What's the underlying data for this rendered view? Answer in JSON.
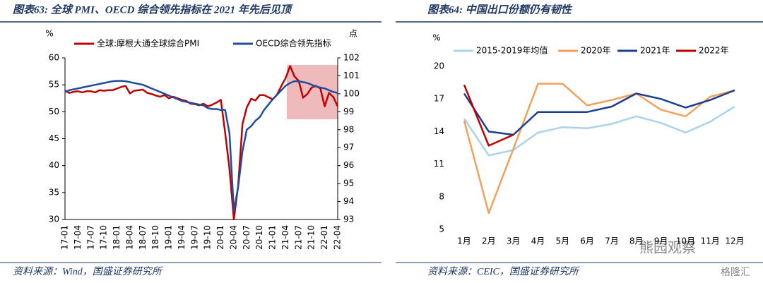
{
  "chart_data": [
    {
      "type": "line",
      "title": "图表63: 全球 PMI、OECD 综合领先指标在 2021 年先后见顶",
      "source": "资料来源：Wind，国盛证券研究所",
      "y_label": "%",
      "y2_label": "点",
      "categories": [
        "17-01",
        null,
        null,
        "17-04",
        null,
        null,
        "17-07",
        null,
        null,
        "17-10",
        null,
        null,
        "18-01",
        null,
        null,
        "18-04",
        null,
        null,
        "18-07",
        null,
        null,
        "18-10",
        null,
        null,
        "19-01",
        null,
        null,
        "19-04",
        null,
        null,
        "19-07",
        null,
        null,
        "19-10",
        null,
        null,
        "20-01",
        null,
        null,
        "20-04",
        null,
        null,
        "20-07",
        null,
        null,
        "20-10",
        null,
        null,
        "21-01",
        null,
        null,
        "21-04",
        null,
        null,
        "21-07",
        null,
        null,
        "21-10",
        null,
        null,
        "22-01",
        null,
        null,
        "22-04"
      ],
      "series": [
        {
          "name": "全球:摩根大通全球综合PMI",
          "color": "#c00000",
          "values": [
            53.9,
            53.5,
            53.7,
            53.8,
            53.6,
            53.8,
            53.8,
            53.6,
            54.0,
            53.9,
            54.0,
            54.0,
            54.3,
            54.6,
            54.8,
            53.4,
            53.9,
            54.0,
            54.1,
            53.5,
            53.3,
            53.0,
            52.8,
            53.1,
            52.5,
            52.8,
            52.5,
            52.2,
            52.0,
            51.5,
            51.4,
            51.2,
            51.5,
            51.0,
            51.3,
            51.7,
            52.2,
            46.1,
            39.4,
            30.0,
            36.3,
            47.7,
            50.8,
            52.4,
            52.1,
            53.1,
            53.1,
            52.7,
            52.3,
            53.2,
            54.8,
            56.3,
            58.5,
            56.6,
            55.7,
            52.6,
            53.3,
            54.5,
            54.8,
            54.3,
            51.0,
            53.5,
            52.7,
            51.0
          ]
        },
        {
          "name": "OECD综合领先指标",
          "color": "#1f4e9c",
          "axis": "y2",
          "values": [
            100.1,
            100.2,
            100.25,
            100.3,
            100.35,
            100.4,
            100.45,
            100.5,
            100.55,
            100.6,
            100.65,
            100.7,
            100.72,
            100.72,
            100.7,
            100.65,
            100.6,
            100.55,
            100.5,
            100.4,
            100.3,
            100.2,
            100.1,
            100.0,
            99.9,
            99.8,
            99.7,
            99.6,
            99.55,
            99.5,
            99.45,
            99.4,
            99.35,
            99.2,
            99.15,
            99.15,
            99.1,
            99.1,
            97.8,
            93.5,
            94.8,
            96.8,
            98.0,
            98.2,
            98.5,
            98.7,
            99.1,
            99.4,
            99.7,
            99.95,
            100.2,
            100.45,
            100.6,
            100.7,
            100.7,
            100.65,
            100.6,
            100.5,
            100.4,
            100.35,
            100.3,
            100.2,
            100.1,
            100.05
          ]
        }
      ],
      "ylim": [
        30,
        60
      ],
      "yticks": [
        30,
        35,
        40,
        45,
        50,
        55,
        60
      ],
      "y2lim": [
        93,
        102
      ],
      "y2ticks": [
        93,
        94,
        95,
        96,
        97,
        98,
        99,
        100,
        101,
        102
      ]
    },
    {
      "type": "line",
      "title": "图表64: 中国出口份额仍有韧性",
      "source": "资料来源：CEIC，国盛证券研究所",
      "y_label": "%",
      "categories": [
        "1月",
        "2月",
        "3月",
        "4月",
        "5月",
        "6月",
        "7月",
        "8月",
        "9月",
        "10月",
        "11月",
        "12月"
      ],
      "series": [
        {
          "name": "2015-2019年均值",
          "color": "#a9d3e8",
          "values": [
            15.2,
            11.8,
            12.3,
            13.9,
            14.4,
            14.3,
            14.7,
            15.4,
            14.8,
            13.9,
            14.9,
            16.3
          ]
        },
        {
          "name": "2020年",
          "color": "#f5a05a",
          "values": [
            15.0,
            6.5,
            12.4,
            18.4,
            18.4,
            16.4,
            16.9,
            17.5,
            16.0,
            15.4,
            17.2,
            17.8
          ]
        },
        {
          "name": "2021年",
          "color": "#1a3f8f",
          "values": [
            17.5,
            14.0,
            13.7,
            15.8,
            15.8,
            15.8,
            16.3,
            17.5,
            17.0,
            16.2,
            16.9,
            17.8
          ]
        },
        {
          "name": "2022年",
          "color": "#c00000",
          "values": [
            18.3,
            12.7,
            13.7,
            null,
            null,
            null,
            null,
            null,
            null,
            null,
            null,
            null
          ]
        }
      ],
      "ylim": [
        5,
        20
      ],
      "yticks": [
        5,
        8,
        11,
        14,
        17,
        20
      ]
    }
  ],
  "watermarks": [
    "熊园观察",
    "格隆汇"
  ]
}
